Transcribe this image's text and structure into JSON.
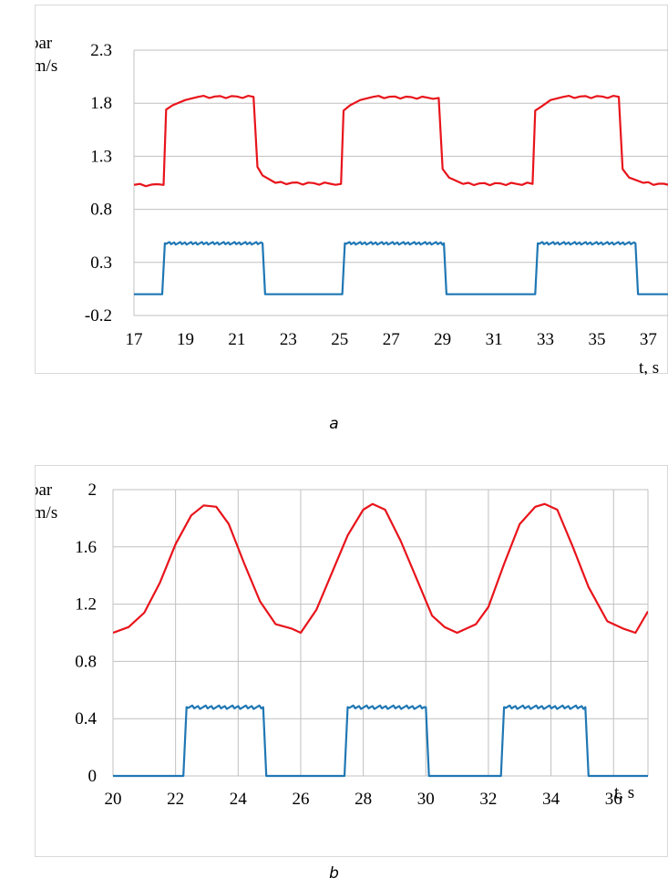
{
  "colors": {
    "pressure": "#e8141b",
    "velocity": "#1f77b4",
    "grid": "#c0c0c0",
    "frame": "#d9d9d9"
  },
  "chart_data": [
    {
      "type": "line",
      "caption": "a",
      "ylabel_line1": "P, bar",
      "ylabel_line2": "V, m/s",
      "xlabel": "t, s",
      "xlim": [
        17,
        37.8
      ],
      "ylim": [
        -0.2,
        2.3
      ],
      "xticks": [
        "17",
        "19",
        "21",
        "23",
        "25",
        "27",
        "29",
        "31",
        "33",
        "35",
        "37"
      ],
      "yticks": [
        "2.3",
        "1.8",
        "1.3",
        "0.8",
        "0.3",
        "-0.2"
      ],
      "xtick_values": [
        17,
        19,
        21,
        23,
        25,
        27,
        29,
        31,
        33,
        35,
        37
      ],
      "ytick_values": [
        2.3,
        1.8,
        1.3,
        0.8,
        0.3,
        -0.2
      ],
      "grid": "horizontal",
      "series": [
        {
          "color": "#e8141b",
          "shape": "square",
          "x": [
            17,
            18.15,
            18.25,
            18.5,
            19.0,
            19.5,
            21.65,
            21.8,
            22.0,
            22.5,
            25.05,
            25.15,
            25.4,
            25.8,
            26.3,
            28.85,
            29.0,
            29.25,
            29.8,
            32.5,
            32.6,
            32.85,
            33.2,
            33.7,
            35.85,
            36.0,
            36.25,
            36.8,
            37.8
          ],
          "y": [
            1.03,
            1.03,
            1.74,
            1.78,
            1.83,
            1.86,
            1.86,
            1.2,
            1.12,
            1.05,
            1.04,
            1.73,
            1.78,
            1.83,
            1.86,
            1.85,
            1.18,
            1.1,
            1.04,
            1.04,
            1.73,
            1.77,
            1.83,
            1.86,
            1.86,
            1.18,
            1.1,
            1.05,
            1.03
          ]
        },
        {
          "color": "#1f77b4",
          "shape": "step",
          "x": [
            17,
            18.1,
            18.2,
            22.0,
            22.1,
            25.1,
            25.2,
            29.05,
            29.15,
            32.6,
            32.7,
            36.5,
            36.6,
            37.8
          ],
          "y": [
            0.0,
            0.0,
            0.48,
            0.48,
            0.0,
            0.0,
            0.48,
            0.48,
            0.0,
            0.0,
            0.48,
            0.48,
            0.0,
            0.0
          ]
        }
      ]
    },
    {
      "type": "line",
      "caption": "b",
      "ylabel_line1": "P, bar",
      "ylabel_line2": "V, m/s",
      "xlabel": "t, s",
      "xlim": [
        20,
        37.1
      ],
      "ylim": [
        0,
        2
      ],
      "xticks": [
        "20",
        "22",
        "24",
        "26",
        "28",
        "30",
        "32",
        "34",
        "36"
      ],
      "yticks": [
        "2",
        "1.6",
        "1.2",
        "0.8",
        "0.4",
        "0"
      ],
      "xtick_values": [
        20,
        22,
        24,
        26,
        28,
        30,
        32,
        34,
        36
      ],
      "ytick_values": [
        2,
        1.6,
        1.2,
        0.8,
        0.4,
        0
      ],
      "grid": "both",
      "series": [
        {
          "color": "#e8141b",
          "shape": "sine",
          "x": [
            20.0,
            20.5,
            21.0,
            21.5,
            22.0,
            22.5,
            22.9,
            23.3,
            23.7,
            24.2,
            24.7,
            25.2,
            25.7,
            26.0,
            26.5,
            27.0,
            27.5,
            28.0,
            28.3,
            28.7,
            29.2,
            29.7,
            30.2,
            30.6,
            31.0,
            31.6,
            32.0,
            32.5,
            33.0,
            33.5,
            33.8,
            34.2,
            34.7,
            35.2,
            35.8,
            36.3,
            36.7,
            37.1
          ],
          "y": [
            1.0,
            1.04,
            1.14,
            1.35,
            1.62,
            1.82,
            1.89,
            1.88,
            1.76,
            1.48,
            1.22,
            1.06,
            1.03,
            1.0,
            1.16,
            1.42,
            1.68,
            1.86,
            1.9,
            1.86,
            1.64,
            1.38,
            1.12,
            1.04,
            1.0,
            1.06,
            1.18,
            1.48,
            1.76,
            1.88,
            1.9,
            1.86,
            1.6,
            1.32,
            1.08,
            1.03,
            1.0,
            1.15
          ]
        },
        {
          "color": "#1f77b4",
          "shape": "step",
          "x": [
            20.0,
            22.25,
            22.35,
            24.8,
            24.9,
            27.4,
            27.5,
            30.0,
            30.1,
            32.4,
            32.5,
            35.1,
            35.2,
            37.1
          ],
          "y": [
            0.0,
            0.0,
            0.48,
            0.48,
            0.0,
            0.0,
            0.48,
            0.48,
            0.0,
            0.0,
            0.48,
            0.48,
            0.0,
            0.0
          ]
        }
      ]
    }
  ]
}
